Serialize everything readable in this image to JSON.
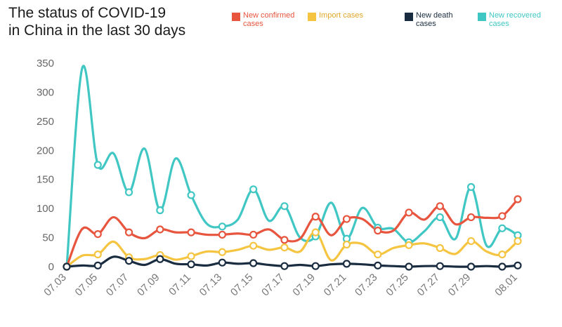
{
  "title_line1": "The status of COVID-19",
  "title_line2": "in China in the last 30 days",
  "chart_data": {
    "type": "line",
    "title": "The status of COVID-19 in China in the last 30 days",
    "xlabel": "",
    "ylabel": "",
    "ylim": [
      0,
      350
    ],
    "yticks": [
      0,
      50,
      100,
      150,
      200,
      250,
      300,
      350
    ],
    "grid": false,
    "legend_position": "top",
    "x_tick_labels": [
      "07.03",
      "07.05",
      "07.07",
      "07.09",
      "07.11",
      "07.13",
      "07.15",
      "07.17",
      "07.19",
      "07.21",
      "07.23",
      "07.25",
      "07.27",
      "07.29",
      "08.01"
    ],
    "x": [
      "07.03",
      "07.04",
      "07.05",
      "07.06",
      "07.07",
      "07.08",
      "07.09",
      "07.10",
      "07.11",
      "07.12",
      "07.13",
      "07.14",
      "07.15",
      "07.16",
      "07.17",
      "07.18",
      "07.19",
      "07.20",
      "07.21",
      "07.22",
      "07.23",
      "07.24",
      "07.25",
      "07.26",
      "07.27",
      "07.28",
      "07.29",
      "07.30",
      "07.31",
      "08.01"
    ],
    "series": [
      {
        "name": "New confirmed cases",
        "color": "#e8553e",
        "values": [
          0,
          65,
          56,
          85,
          59,
          49,
          64,
          59,
          59,
          55,
          55,
          57,
          55,
          64,
          46,
          48,
          86,
          54,
          82,
          82,
          62,
          62,
          93,
          81,
          104,
          73,
          85,
          84,
          87,
          116
        ]
      },
      {
        "name": "Import cases",
        "color": "#f5c542",
        "values": [
          0,
          19,
          21,
          43,
          16,
          13,
          20,
          12,
          18,
          26,
          25,
          29,
          36,
          29,
          33,
          26,
          59,
          11,
          38,
          39,
          21,
          32,
          37,
          40,
          32,
          22,
          44,
          26,
          21,
          44
        ]
      },
      {
        "name": "New death cases",
        "color": "#1a2c3f",
        "values": [
          0,
          2,
          2,
          17,
          10,
          3,
          13,
          5,
          4,
          2,
          7,
          5,
          6,
          3,
          1,
          3,
          1,
          4,
          5,
          4,
          2,
          1,
          0,
          1,
          1,
          0,
          0,
          1,
          0,
          2
        ]
      },
      {
        "name": "New recovered cases",
        "color": "#40c7c4",
        "values": [
          0,
          342,
          175,
          195,
          128,
          203,
          97,
          186,
          123,
          74,
          69,
          81,
          133,
          79,
          104,
          50,
          52,
          110,
          48,
          101,
          67,
          65,
          42,
          61,
          85,
          48,
          137,
          36,
          66,
          54
        ]
      }
    ]
  }
}
